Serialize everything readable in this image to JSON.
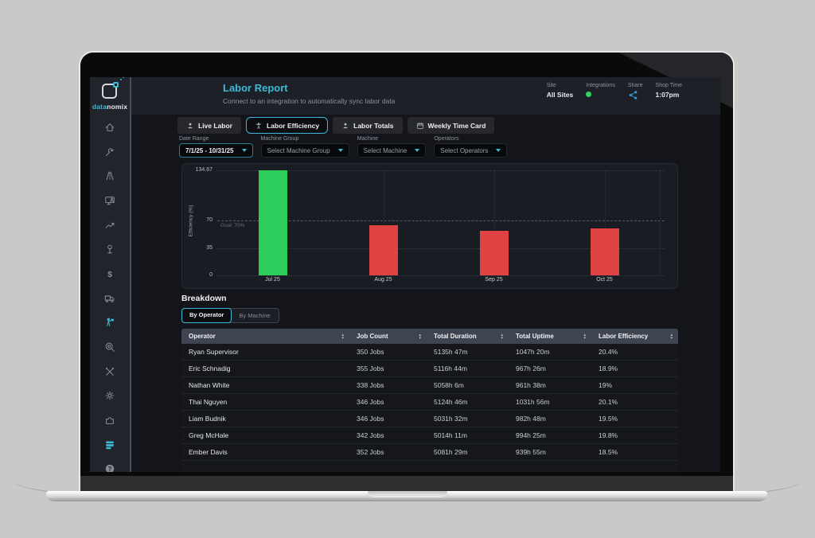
{
  "brand": {
    "name_primary": "data",
    "name_secondary": "nomix"
  },
  "header": {
    "title": "Labor Report",
    "subtitle": "Connect to an integration to automatically sync labor data",
    "site": {
      "label": "Site",
      "value": "All Sites"
    },
    "integrations": {
      "label": "Integrations",
      "status_color": "#2fd360"
    },
    "share": {
      "label": "Share",
      "icon": "share-icon",
      "icon_color": "#2d9fd8"
    },
    "shop_time": {
      "label": "Shop Time",
      "value": "1:07pm"
    }
  },
  "sidebar": {
    "items": [
      {
        "icon": "home-icon",
        "active": false
      },
      {
        "icon": "wrench-icon",
        "active": false
      },
      {
        "icon": "road-icon",
        "active": false
      },
      {
        "icon": "training-monitor-icon",
        "active": false
      },
      {
        "icon": "trend-up-icon",
        "active": false
      },
      {
        "icon": "milestone-icon",
        "active": false
      },
      {
        "icon": "dollar-icon",
        "active": false
      },
      {
        "icon": "truck-icon",
        "active": false
      },
      {
        "icon": "labor-report-icon",
        "active": true
      },
      {
        "icon": "search-icon",
        "active": false
      },
      {
        "icon": "tools-icon",
        "active": false
      },
      {
        "icon": "gear-icon",
        "active": false
      },
      {
        "icon": "puzzle-icon",
        "active": false
      },
      {
        "icon": "database-icon",
        "active": true
      },
      {
        "icon": "help-icon",
        "active": false
      }
    ]
  },
  "tabs": [
    {
      "label": "Live Labor",
      "icon": "person-icon",
      "active": false
    },
    {
      "label": "Labor Efficiency",
      "icon": "efficiency-person-icon",
      "active": true
    },
    {
      "label": "Labor Totals",
      "icon": "person-icon",
      "active": false
    },
    {
      "label": "Weekly Time Card",
      "icon": "calendar-icon",
      "active": false
    }
  ],
  "filters": [
    {
      "label": "Date Range",
      "value": "7/1/25 - 10/31/25",
      "accent": true
    },
    {
      "label": "Machine Group",
      "value": "Select Machine Group",
      "accent": false
    },
    {
      "label": "Machine",
      "value": "Select Machine",
      "accent": false
    },
    {
      "label": "Operators",
      "value": "Select Operators",
      "accent": false
    }
  ],
  "chart_data": {
    "type": "bar",
    "title": "",
    "ylabel": "Efficiency (%)",
    "categories": [
      "Jul 25",
      "Aug 25",
      "Sep 25",
      "Oct 25"
    ],
    "values": [
      134.67,
      64,
      57,
      60
    ],
    "yticks": [
      0,
      35,
      70,
      134.67
    ],
    "ylim": [
      0,
      134.67
    ],
    "goal": {
      "value": 70,
      "label": "Goal: 70%"
    },
    "colors": {
      "above_goal": "#2bce5a",
      "below_goal": "#e04343"
    },
    "grid": "dotted",
    "legend": "none"
  },
  "breakdown": {
    "title": "Breakdown",
    "toggle": [
      {
        "label": "By Operator",
        "active": true
      },
      {
        "label": "By Machine",
        "active": false
      }
    ],
    "table": {
      "columns": [
        "Operator",
        "Job Count",
        "Total Duration",
        "Total Uptime",
        "Labor Efficiency"
      ],
      "rows": [
        [
          "Ryan Supervisor",
          "350 Jobs",
          "5135h 47m",
          "1047h 20m",
          "20.4%"
        ],
        [
          "Eric Schnadig",
          "355 Jobs",
          "5116h 44m",
          "967h 26m",
          "18.9%"
        ],
        [
          "Nathan White",
          "338 Jobs",
          "5058h 6m",
          "961h 38m",
          "19%"
        ],
        [
          "Thai Nguyen",
          "346 Jobs",
          "5124h 46m",
          "1031h 56m",
          "20.1%"
        ],
        [
          "Liam Budnik",
          "346 Jobs",
          "5031h 32m",
          "982h 48m",
          "19.5%"
        ],
        [
          "Greg McHale",
          "342 Jobs",
          "5014h 11m",
          "994h 25m",
          "19.8%"
        ],
        [
          "Ember Davis",
          "352 Jobs",
          "5081h 29m",
          "939h 55m",
          "18.5%"
        ]
      ],
      "clipped_partial_row": true
    }
  },
  "colors": {
    "accent_cyan": "#3cb9d6",
    "bar_green": "#2bce5a",
    "bar_red": "#e04343",
    "integration_dot": "#2fd360",
    "share_blue": "#2d9fd8"
  }
}
